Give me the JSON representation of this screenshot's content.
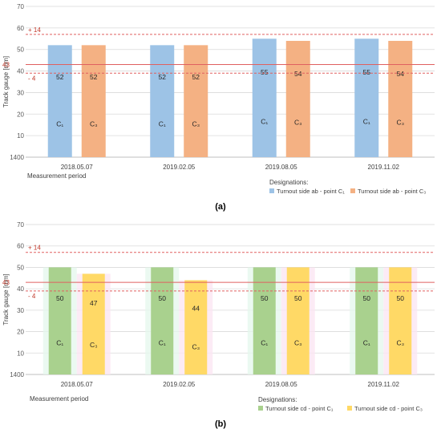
{
  "chart_data": [
    {
      "type": "bar",
      "panel_label": "(a)",
      "categories": [
        "2018.05.07",
        "2019.02.05",
        "2019.08.05",
        "2019.11.02"
      ],
      "series": [
        {
          "name": "Turnout side ab - point",
          "subscript_label": "C₁",
          "bar_label": "C₁",
          "color": "#9DC3E6",
          "values": [
            52,
            52,
            55,
            55
          ]
        },
        {
          "name": "Turnout side ab - point",
          "subscript_label": "C₃",
          "bar_label": "C₃",
          "color": "#F4B183",
          "values": [
            52,
            52,
            54,
            54
          ]
        }
      ],
      "ylabel": "Track gauge [mm]",
      "xlabel": "Measurement period",
      "legend_title": "Designations:",
      "yticks": [
        "1400",
        "10",
        "20",
        "30",
        "40",
        "50",
        "60",
        "70"
      ],
      "ylim": [
        0,
        70
      ],
      "reference_lines": [
        {
          "label": "43",
          "value": 43,
          "style": "solid",
          "color": "#E06060"
        },
        {
          "label": "+ 14",
          "value": 57,
          "style": "dashed",
          "color": "#E06060"
        },
        {
          "label": "- 4",
          "value": 39,
          "style": "dashed",
          "color": "#E06060"
        }
      ],
      "grid": true
    },
    {
      "type": "bar",
      "panel_label": "(b)",
      "categories": [
        "2018.05.07",
        "2019.02.05",
        "2019.08.05",
        "2019.11.02"
      ],
      "series": [
        {
          "name": "Turnout side cd - point",
          "subscript_label": "C₁",
          "bar_label": "C₁",
          "color": "#A9D18E",
          "values": [
            50,
            50,
            50,
            50
          ]
        },
        {
          "name": "Turnout side cd - point",
          "subscript_label": "C₃",
          "bar_label": "C₃",
          "color": "#FFD966",
          "values": [
            47,
            44,
            50,
            50
          ]
        }
      ],
      "ylabel": "Track gauge [mm]",
      "xlabel": "Measurement period",
      "legend_title": "Designations:",
      "yticks": [
        "1400",
        "10",
        "20",
        "30",
        "40",
        "50",
        "60",
        "70"
      ],
      "ylim": [
        0,
        70
      ],
      "reference_lines": [
        {
          "label": "43",
          "value": 43,
          "style": "solid",
          "color": "#E06060"
        },
        {
          "label": "+ 14",
          "value": 57,
          "style": "dashed",
          "color": "#E06060"
        },
        {
          "label": "- 4",
          "value": 39,
          "style": "dashed",
          "color": "#E06060"
        }
      ],
      "grid": true
    }
  ]
}
